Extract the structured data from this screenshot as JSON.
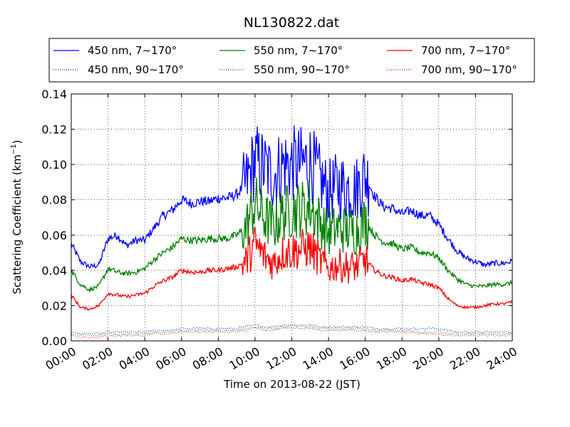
{
  "chart_data": {
    "type": "line",
    "title": "NL130822.dat",
    "xlabel": "Time on 2013-08-22 (JST)",
    "ylabel": "Scattering Coefficient (km",
    "ylabel_superscript": "−1",
    "ylabel_suffix": ")",
    "xlim": [
      "00:00",
      "24:00"
    ],
    "ylim": [
      0,
      0.14
    ],
    "xticks": [
      "00:00",
      "02:00",
      "04:00",
      "06:00",
      "08:00",
      "10:00",
      "12:00",
      "14:00",
      "16:00",
      "18:00",
      "20:00",
      "22:00",
      "24:00"
    ],
    "yticks": [
      "0.00",
      "0.02",
      "0.04",
      "0.06",
      "0.08",
      "0.10",
      "0.12",
      "0.14"
    ],
    "grid": true,
    "legend_position": "top, above plot",
    "series": [
      {
        "name": "450 nm, 7∼170°",
        "color": "#0000ff",
        "style": "solid",
        "x": [
          0,
          0.5,
          1,
          1.5,
          2,
          2.5,
          3,
          3.5,
          4,
          4.5,
          5,
          5.5,
          6,
          6.5,
          7,
          7.5,
          8,
          8.5,
          9,
          9.5,
          10,
          10.5,
          11,
          11.5,
          12,
          12.5,
          13,
          13.5,
          14,
          14.5,
          15,
          15.5,
          16,
          16.5,
          17,
          17.5,
          18,
          18.5,
          19,
          19.5,
          20,
          20.5,
          21,
          21.5,
          22,
          22.5,
          23,
          23.5,
          24
        ],
        "y": [
          0.055,
          0.045,
          0.042,
          0.043,
          0.058,
          0.06,
          0.054,
          0.057,
          0.057,
          0.064,
          0.071,
          0.074,
          0.08,
          0.078,
          0.079,
          0.079,
          0.081,
          0.081,
          0.083,
          0.089,
          0.102,
          0.098,
          0.094,
          0.1,
          0.1,
          0.1,
          0.102,
          0.092,
          0.084,
          0.088,
          0.087,
          0.086,
          0.094,
          0.082,
          0.076,
          0.075,
          0.072,
          0.074,
          0.071,
          0.071,
          0.066,
          0.058,
          0.051,
          0.047,
          0.045,
          0.043,
          0.044,
          0.044,
          0.045
        ]
      },
      {
        "name": "450 nm, 90∼170°",
        "color": "#0000ff",
        "style": "dotted",
        "x": [
          0,
          0.5,
          1,
          1.5,
          2,
          2.5,
          3,
          3.5,
          4,
          4.5,
          5,
          5.5,
          6,
          6.5,
          7,
          7.5,
          8,
          8.5,
          9,
          9.5,
          10,
          10.5,
          11,
          11.5,
          12,
          12.5,
          13,
          13.5,
          14,
          14.5,
          15,
          15.5,
          16,
          16.5,
          17,
          17.5,
          18,
          18.5,
          19,
          19.5,
          20,
          20.5,
          21,
          21.5,
          22,
          22.5,
          23,
          23.5,
          24
        ],
        "y": [
          0.005,
          0.004,
          0.004,
          0.004,
          0.005,
          0.005,
          0.005,
          0.005,
          0.005,
          0.006,
          0.006,
          0.006,
          0.007,
          0.007,
          0.007,
          0.007,
          0.007,
          0.007,
          0.007,
          0.008,
          0.009,
          0.008,
          0.008,
          0.009,
          0.009,
          0.009,
          0.009,
          0.008,
          0.008,
          0.008,
          0.008,
          0.008,
          0.008,
          0.007,
          0.007,
          0.007,
          0.007,
          0.007,
          0.007,
          0.007,
          0.007,
          0.006,
          0.005,
          0.005,
          0.005,
          0.005,
          0.005,
          0.005,
          0.005
        ]
      },
      {
        "name": "550 nm, 7∼170°",
        "color": "#008000",
        "style": "solid",
        "x": [
          0,
          0.5,
          1,
          1.5,
          2,
          2.5,
          3,
          3.5,
          4,
          4.5,
          5,
          5.5,
          6,
          6.5,
          7,
          7.5,
          8,
          8.5,
          9,
          9.5,
          10,
          10.5,
          11,
          11.5,
          12,
          12.5,
          13,
          13.5,
          14,
          14.5,
          15,
          15.5,
          16,
          16.5,
          17,
          17.5,
          18,
          18.5,
          19,
          19.5,
          20,
          20.5,
          21,
          21.5,
          22,
          22.5,
          23,
          23.5,
          24
        ],
        "y": [
          0.04,
          0.032,
          0.029,
          0.031,
          0.041,
          0.039,
          0.038,
          0.039,
          0.041,
          0.046,
          0.05,
          0.053,
          0.058,
          0.057,
          0.057,
          0.058,
          0.058,
          0.058,
          0.06,
          0.064,
          0.078,
          0.07,
          0.065,
          0.072,
          0.074,
          0.075,
          0.076,
          0.068,
          0.061,
          0.064,
          0.063,
          0.062,
          0.068,
          0.06,
          0.056,
          0.055,
          0.052,
          0.053,
          0.05,
          0.05,
          0.047,
          0.04,
          0.035,
          0.032,
          0.031,
          0.031,
          0.032,
          0.032,
          0.033
        ]
      },
      {
        "name": "550 nm, 90∼170°",
        "color": "#008000",
        "style": "dotted",
        "x": [
          0,
          0.5,
          1,
          1.5,
          2,
          2.5,
          3,
          3.5,
          4,
          4.5,
          5,
          5.5,
          6,
          6.5,
          7,
          7.5,
          8,
          8.5,
          9,
          9.5,
          10,
          10.5,
          11,
          11.5,
          12,
          12.5,
          13,
          13.5,
          14,
          14.5,
          15,
          15.5,
          16,
          16.5,
          17,
          17.5,
          18,
          18.5,
          19,
          19.5,
          20,
          20.5,
          21,
          21.5,
          22,
          22.5,
          23,
          23.5,
          24
        ],
        "y": [
          0.004,
          0.003,
          0.003,
          0.003,
          0.004,
          0.004,
          0.004,
          0.004,
          0.004,
          0.005,
          0.005,
          0.005,
          0.006,
          0.006,
          0.006,
          0.006,
          0.006,
          0.006,
          0.006,
          0.007,
          0.008,
          0.007,
          0.007,
          0.008,
          0.008,
          0.008,
          0.008,
          0.007,
          0.007,
          0.007,
          0.007,
          0.007,
          0.007,
          0.006,
          0.006,
          0.006,
          0.006,
          0.006,
          0.005,
          0.005,
          0.005,
          0.004,
          0.004,
          0.004,
          0.004,
          0.004,
          0.004,
          0.004,
          0.004
        ]
      },
      {
        "name": "700 nm, 7∼170°",
        "color": "#ff0000",
        "style": "solid",
        "x": [
          0,
          0.5,
          1,
          1.5,
          2,
          2.5,
          3,
          3.5,
          4,
          4.5,
          5,
          5.5,
          6,
          6.5,
          7,
          7.5,
          8,
          8.5,
          9,
          9.5,
          10,
          10.5,
          11,
          11.5,
          12,
          12.5,
          13,
          13.5,
          14,
          14.5,
          15,
          15.5,
          16,
          16.5,
          17,
          17.5,
          18,
          18.5,
          19,
          19.5,
          20,
          20.5,
          21,
          21.5,
          22,
          22.5,
          23,
          23.5,
          24
        ],
        "y": [
          0.026,
          0.019,
          0.018,
          0.02,
          0.027,
          0.026,
          0.025,
          0.026,
          0.027,
          0.031,
          0.034,
          0.036,
          0.04,
          0.039,
          0.039,
          0.04,
          0.04,
          0.041,
          0.042,
          0.045,
          0.055,
          0.048,
          0.044,
          0.05,
          0.051,
          0.052,
          0.053,
          0.046,
          0.041,
          0.043,
          0.042,
          0.042,
          0.046,
          0.04,
          0.037,
          0.036,
          0.034,
          0.035,
          0.033,
          0.032,
          0.03,
          0.024,
          0.02,
          0.019,
          0.019,
          0.02,
          0.021,
          0.021,
          0.022
        ]
      },
      {
        "name": "700 nm, 90∼170°",
        "color": "#ff0000",
        "style": "dotted",
        "x": [
          0,
          0.5,
          1,
          1.5,
          2,
          2.5,
          3,
          3.5,
          4,
          4.5,
          5,
          5.5,
          6,
          6.5,
          7,
          7.5,
          8,
          8.5,
          9,
          9.5,
          10,
          10.5,
          11,
          11.5,
          12,
          12.5,
          13,
          13.5,
          14,
          14.5,
          15,
          15.5,
          16,
          16.5,
          17,
          17.5,
          18,
          18.5,
          19,
          19.5,
          20,
          20.5,
          21,
          21.5,
          22,
          22.5,
          23,
          23.5,
          24
        ],
        "y": [
          0.003,
          0.002,
          0.002,
          0.002,
          0.003,
          0.003,
          0.003,
          0.003,
          0.003,
          0.004,
          0.004,
          0.004,
          0.005,
          0.005,
          0.005,
          0.005,
          0.005,
          0.005,
          0.005,
          0.006,
          0.007,
          0.006,
          0.006,
          0.007,
          0.007,
          0.007,
          0.007,
          0.006,
          0.006,
          0.006,
          0.006,
          0.006,
          0.006,
          0.005,
          0.005,
          0.005,
          0.005,
          0.005,
          0.004,
          0.004,
          0.004,
          0.003,
          0.003,
          0.003,
          0.003,
          0.003,
          0.003,
          0.003,
          0.003
        ]
      }
    ]
  }
}
